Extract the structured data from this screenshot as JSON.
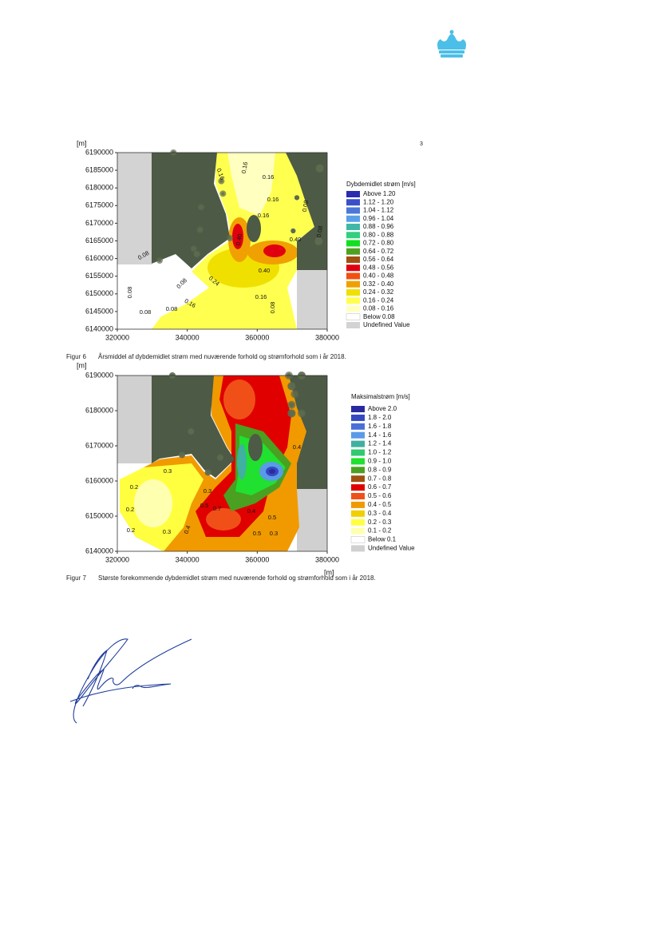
{
  "figures": [
    {
      "y_unit": "[m]",
      "corner_mark": "3",
      "yticks": [
        6190000,
        6185000,
        6180000,
        6175000,
        6170000,
        6165000,
        6160000,
        6155000,
        6150000,
        6145000,
        6140000
      ],
      "xticks": [
        320000,
        340000,
        360000,
        380000
      ],
      "contour_labels": [
        "0.16",
        "0.16",
        "0.16",
        "0.16",
        "0.16",
        "0.08",
        "0.40",
        "0.40",
        "0.40",
        "0.24",
        "0.16",
        "0.16",
        "0.08",
        "0.08",
        "0.08",
        "0.08",
        "0.08",
        "0.08",
        "0.08"
      ],
      "legend": {
        "title": "Dybdemidlet strøm [m/s]",
        "items": [
          {
            "label": "Above 1.20",
            "color": "#2b2bb0"
          },
          {
            "label": "1.12 - 1.20",
            "color": "#3a50c8"
          },
          {
            "label": "1.04 - 1.12",
            "color": "#4b78d8"
          },
          {
            "label": "0.96 - 1.04",
            "color": "#5aa0e8"
          },
          {
            "label": "0.88 - 0.96",
            "color": "#40b8a8"
          },
          {
            "label": "0.80 - 0.88",
            "color": "#30d080"
          },
          {
            "label": "0.72 - 0.80",
            "color": "#10e020"
          },
          {
            "label": "0.64 - 0.72",
            "color": "#50a020"
          },
          {
            "label": "0.56 - 0.64",
            "color": "#a05010"
          },
          {
            "label": "0.48 - 0.56",
            "color": "#e00010"
          },
          {
            "label": "0.40 - 0.48",
            "color": "#f05010"
          },
          {
            "label": "0.32 - 0.40",
            "color": "#f0a000"
          },
          {
            "label": "0.24 - 0.32",
            "color": "#f0e000"
          },
          {
            "label": "0.16 - 0.24",
            "color": "#ffff50"
          },
          {
            "label": "0.08 - 0.16",
            "color": "#ffffc0"
          },
          {
            "label": "Below 0.08",
            "color": "#ffffff"
          },
          {
            "label": "Undefined Value",
            "color": "#d3d3d3"
          }
        ]
      },
      "caption": {
        "number": "Figur 6",
        "text": "Årsmiddel af dybdemidlet strøm med nuværende forhold og strømforhold som i år 2018."
      }
    },
    {
      "y_unit": "[m]",
      "x_unit": "[m]",
      "yticks": [
        6190000,
        6180000,
        6170000,
        6160000,
        6150000,
        6140000
      ],
      "xticks": [
        320000,
        340000,
        360000,
        380000
      ],
      "contour_labels": [
        "0.3",
        "0.2",
        "0.2",
        "0.2",
        "0.3",
        "0.4",
        "0.3",
        "0.5",
        "0.7",
        "0.4",
        "0.5",
        "0.5",
        "0.4",
        "0.3"
      ],
      "legend": {
        "title": "Maksimalstrøm [m/s]",
        "items": [
          {
            "label": "Above 2.0",
            "color": "#2a2aa0"
          },
          {
            "label": "1.8 - 2.0",
            "color": "#3548c0"
          },
          {
            "label": "1.6 - 1.8",
            "color": "#4a70d8"
          },
          {
            "label": "1.4 - 1.6",
            "color": "#5a9ae8"
          },
          {
            "label": "1.2 - 1.4",
            "color": "#40b0a0"
          },
          {
            "label": "1.0 - 1.2",
            "color": "#30c870"
          },
          {
            "label": "0.9 - 1.0",
            "color": "#20e030"
          },
          {
            "label": "0.8 - 0.9",
            "color": "#4aa020"
          },
          {
            "label": "0.7 - 0.8",
            "color": "#a05010"
          },
          {
            "label": "0.6 - 0.7",
            "color": "#e00000"
          },
          {
            "label": "0.5 - 0.6",
            "color": "#f05018"
          },
          {
            "label": "0.4 - 0.5",
            "color": "#f09a00"
          },
          {
            "label": "0.3 - 0.4",
            "color": "#f0d000"
          },
          {
            "label": "0.2 - 0.3",
            "color": "#ffff40"
          },
          {
            "label": "0.1 - 0.2",
            "color": "#ffffb0"
          },
          {
            "label": "Below 0.1",
            "color": "#ffffff"
          },
          {
            "label": "Undefined Value",
            "color": "#d0d0d0"
          }
        ]
      },
      "caption": {
        "number": "Figur 7",
        "text": "Største forekommende dybdemidlet strøm med nuværende forhold og strømforhold som i år 2018."
      }
    }
  ]
}
